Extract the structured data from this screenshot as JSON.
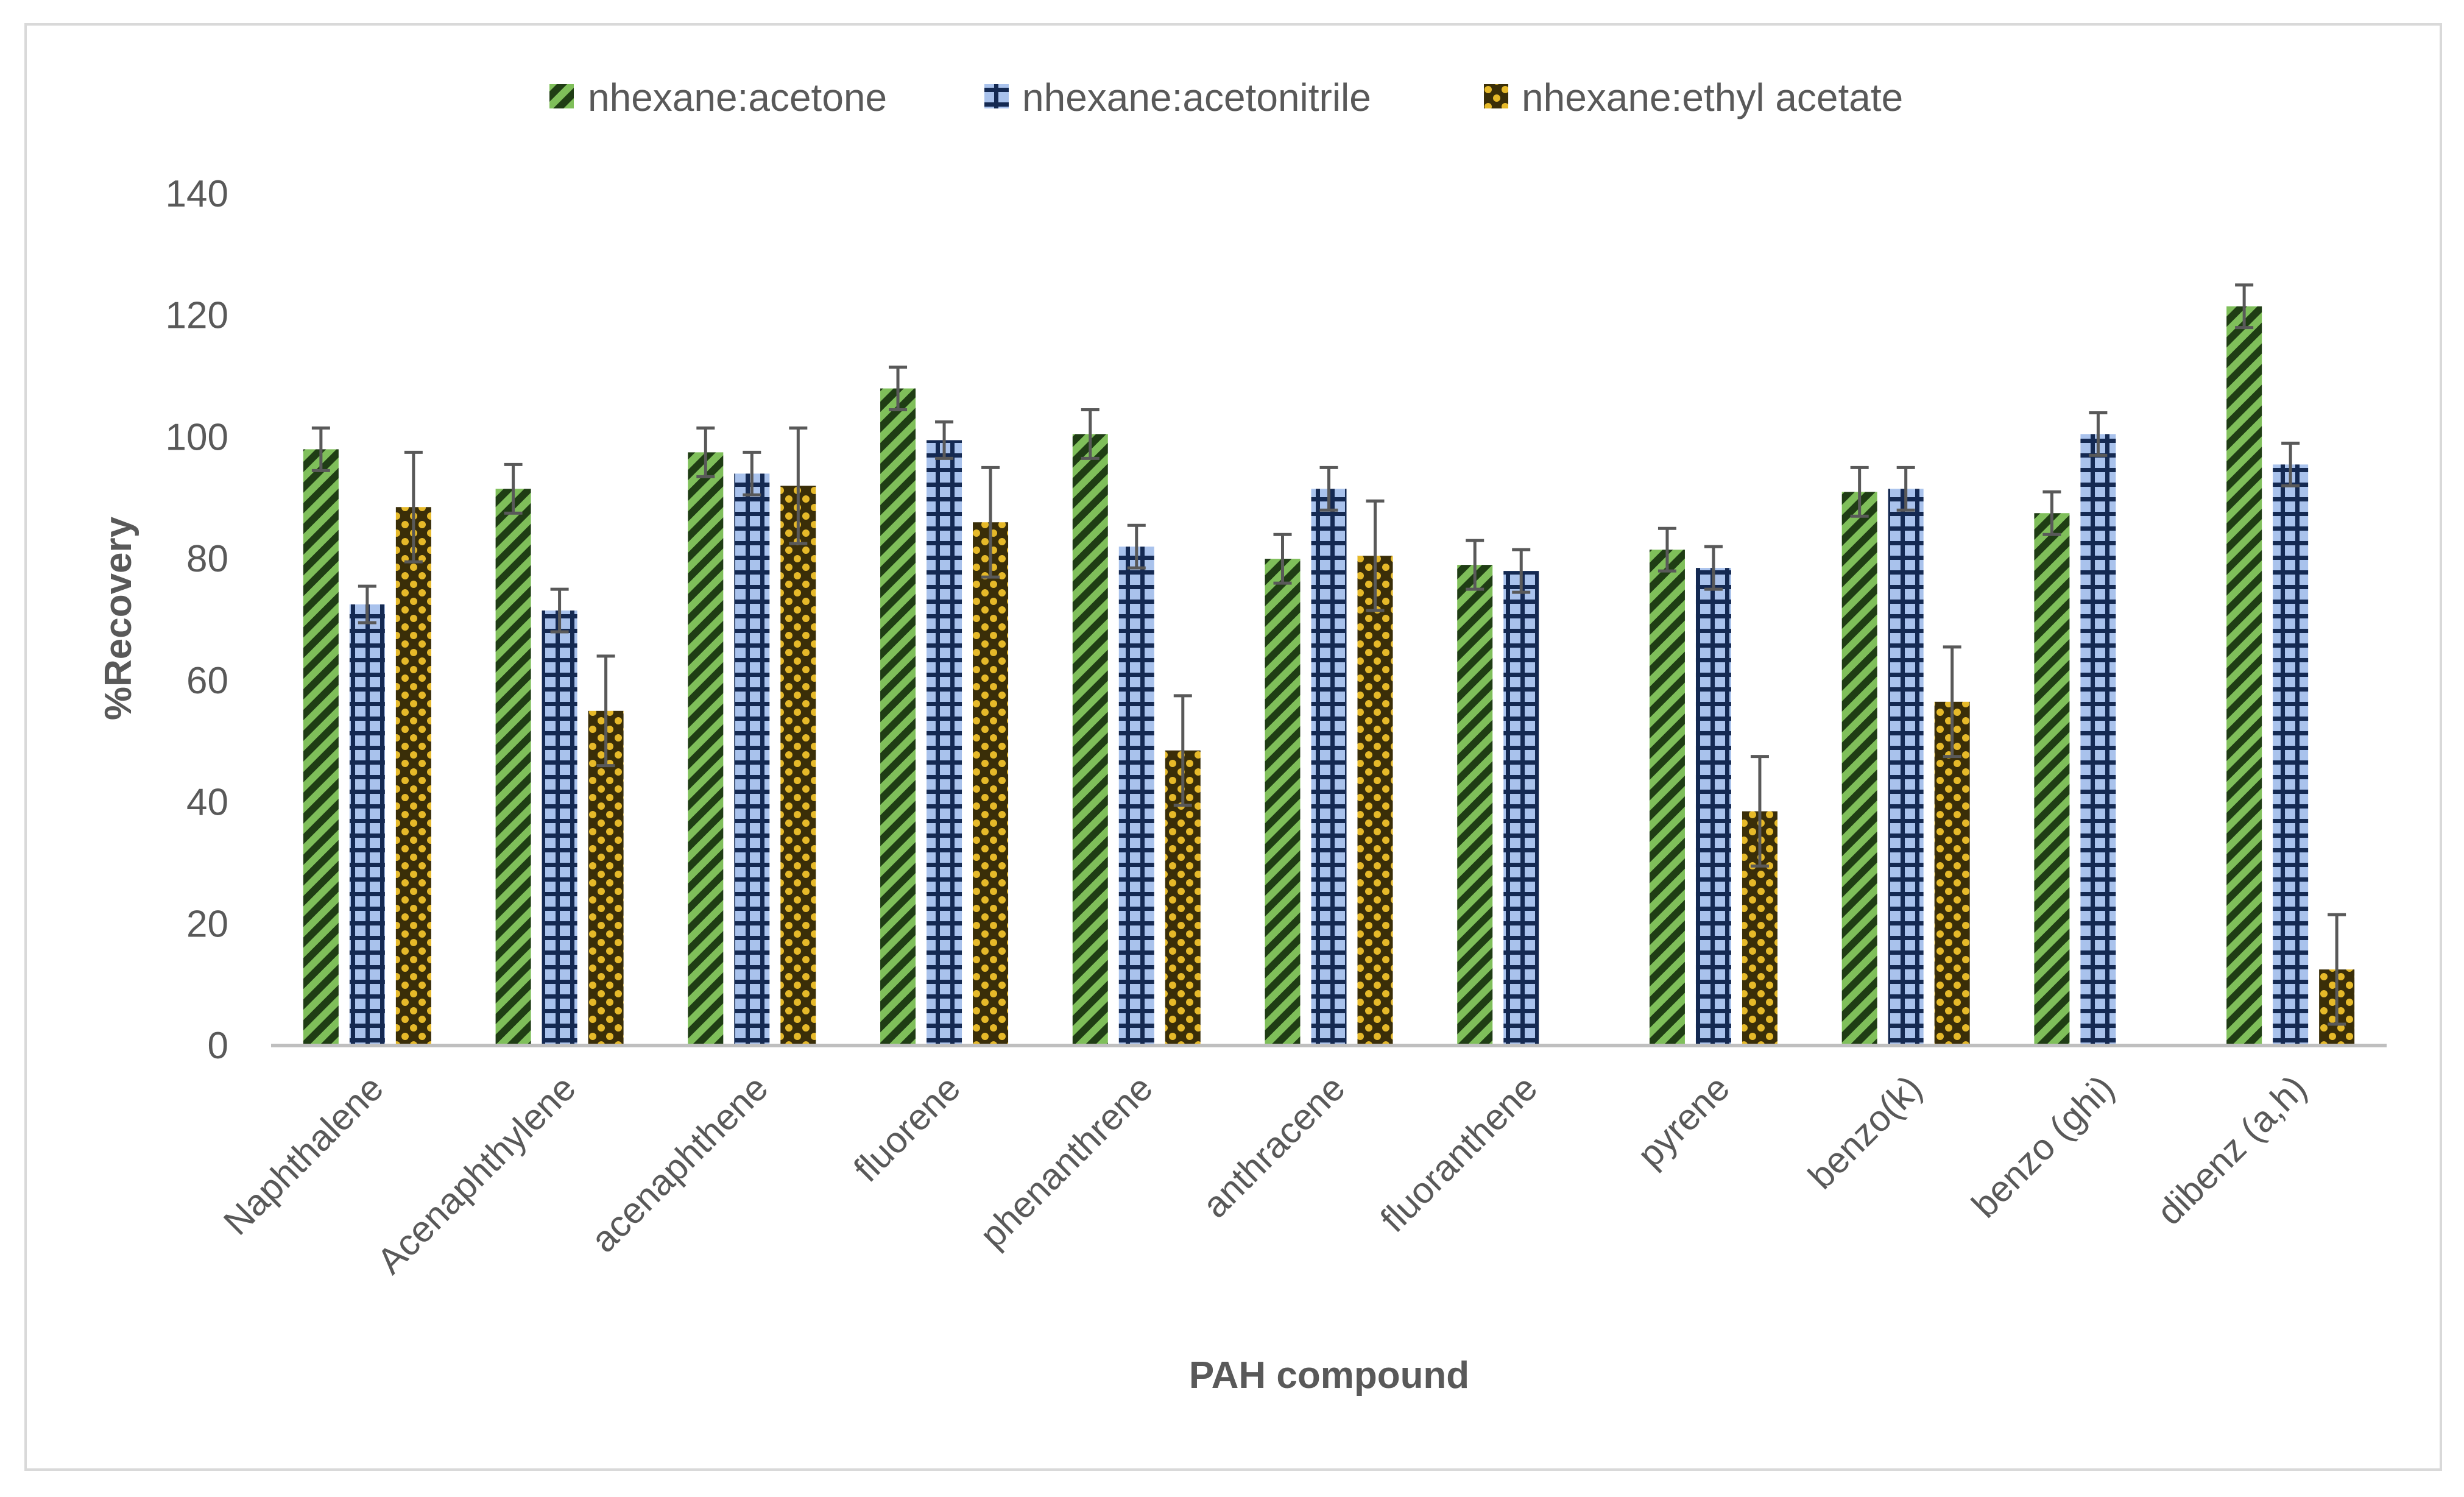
{
  "chart_data": {
    "type": "bar",
    "title": "",
    "xlabel": "PAH compound",
    "ylabel": "%Recovery",
    "ylim": [
      0,
      140
    ],
    "yticks": [
      0,
      20,
      40,
      60,
      80,
      100,
      120,
      140
    ],
    "grid": false,
    "legend_position": "top-center",
    "categories": [
      "Naphthalene",
      "Acenaphthylene",
      "acenaphthene",
      "fluorene",
      "phenanthrene",
      "anthracene",
      "fluoranthene",
      "pyrene",
      "benzo(k)",
      "benzo (ghi)",
      "dibenz (a,h)"
    ],
    "series": [
      {
        "name": "nhexane:acetone",
        "pattern": "diagonal-stripes",
        "colors": {
          "dark": "#1f3d14",
          "light": "#7fbf5a"
        },
        "values": [
          98,
          91.5,
          97.5,
          108,
          100.5,
          80,
          79,
          81.5,
          91,
          87.5,
          121.5
        ],
        "errors": [
          3.5,
          4,
          4,
          3.5,
          4,
          4,
          4,
          3.5,
          4,
          3.5,
          3.5
        ]
      },
      {
        "name": "nhexane:acetonitrile",
        "pattern": "grid",
        "colors": {
          "dark": "#142952",
          "light": "#a9c2ec"
        },
        "values": [
          72.5,
          71.5,
          94,
          99.5,
          82,
          91.5,
          78,
          78.5,
          91.5,
          100.5,
          95.5
        ],
        "errors": [
          3,
          3.5,
          3.5,
          3,
          3.5,
          3.5,
          3.5,
          3.5,
          3.5,
          3.5,
          3.5
        ]
      },
      {
        "name": "nhexane:ethyl acetate",
        "pattern": "dots",
        "colors": {
          "dark": "#3a2e08",
          "light": "#e6b929"
        },
        "values": [
          88.5,
          55,
          92,
          86,
          48.5,
          80.5,
          null,
          38.5,
          56.5,
          null,
          12.5
        ],
        "errors": [
          9,
          9,
          9.5,
          9,
          9,
          9,
          null,
          9,
          9,
          null,
          9
        ]
      }
    ]
  }
}
